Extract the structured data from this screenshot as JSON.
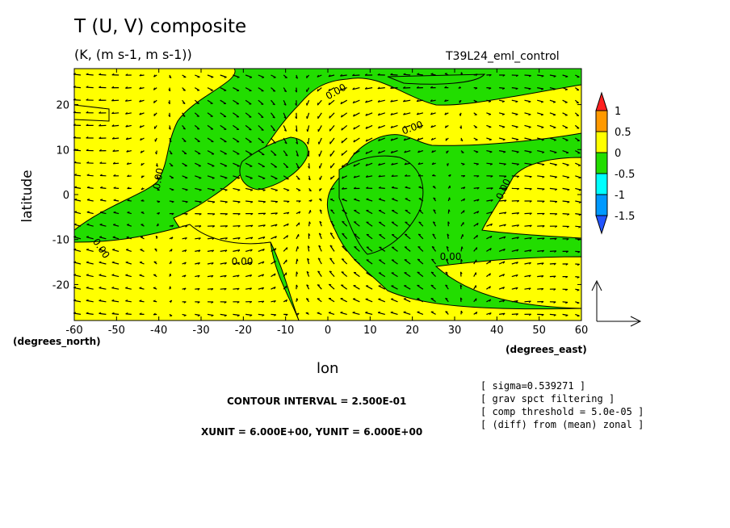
{
  "title": "T (U, V) composite",
  "subtitle": "(K, (m s-1, m s-1))",
  "run_name": "T39L24_eml_control",
  "info_lines": [
    "[ sigma=0.539271 ]",
    "[ grav spct filtering ]",
    "[ comp threshold = 5.0e-05 ]",
    "[ (diff) from (mean) zonal ]"
  ],
  "contour_interval": "CONTOUR INTERVAL = 2.500E-01",
  "unit_scales": "XUNIT = 6.000E+00, YUNIT = 6.000E+00",
  "chart_data": {
    "type": "heatmap",
    "description_kind": "filled contour with vector arrows",
    "xlabel": "lon",
    "ylabel": "latitude",
    "x_unit_label": "(degrees_east)",
    "y_unit_label": "(degrees_north)",
    "xlim": [
      -60,
      60
    ],
    "ylim": [
      -28,
      28
    ],
    "x_ticks": [
      "-60",
      "-50",
      "-40",
      "-30",
      "-20",
      "-10",
      "0",
      "10",
      "20",
      "30",
      "40",
      "50",
      "60"
    ],
    "y_ticks": [
      "20",
      "10",
      "0",
      "-10",
      "-20"
    ],
    "contour_labels": [
      "0.00",
      "0.00",
      "0.00",
      "0.00",
      "0.00",
      "0.00",
      "0.00"
    ],
    "colorbar": {
      "levels": [
        "1",
        "0.5",
        "0",
        "-0.5",
        "-1",
        "-1.5"
      ],
      "colors": [
        "#ff2020",
        "#ff9900",
        "#ffff00",
        "#22dd00",
        "#00ffff",
        "#0099ff",
        "#2255ff"
      ]
    },
    "field_colors": {
      "positive": "#ffff00",
      "negative": "#22dd00"
    }
  }
}
